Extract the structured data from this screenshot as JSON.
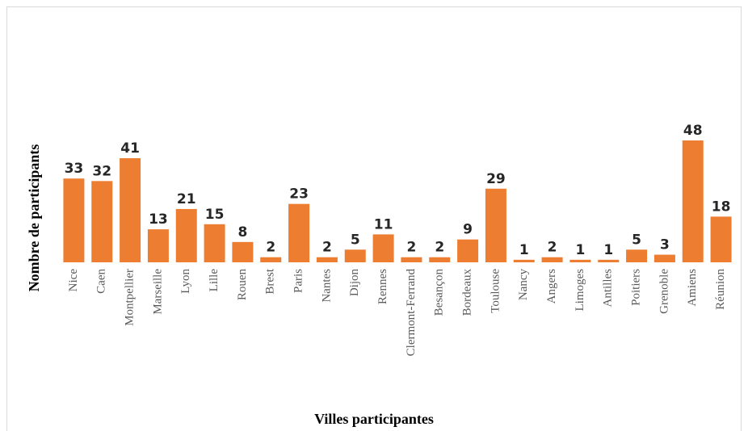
{
  "chart_data": {
    "type": "bar",
    "x_label": "Villes participantes",
    "y_label": "Nombre de participants",
    "categories": [
      "Nice",
      "Caen",
      "Montpellier",
      "Marseille",
      "Lyon",
      "Lille",
      "Rouen",
      "Brest",
      "Paris",
      "Nantes",
      "Dijon",
      "Rennes",
      "Clermont-Ferrand",
      "Besançon",
      "Bordeaux",
      "Toulouse",
      "Nancy",
      "Angers",
      "Limoges",
      "Antilles",
      "Poitiers",
      "Grenoble",
      "Amiens",
      "Réunion"
    ],
    "values": [
      33,
      32,
      41,
      13,
      21,
      15,
      8,
      2,
      23,
      2,
      5,
      11,
      2,
      2,
      9,
      29,
      1,
      2,
      1,
      1,
      5,
      3,
      48,
      18
    ],
    "color": "#ed7d31"
  }
}
